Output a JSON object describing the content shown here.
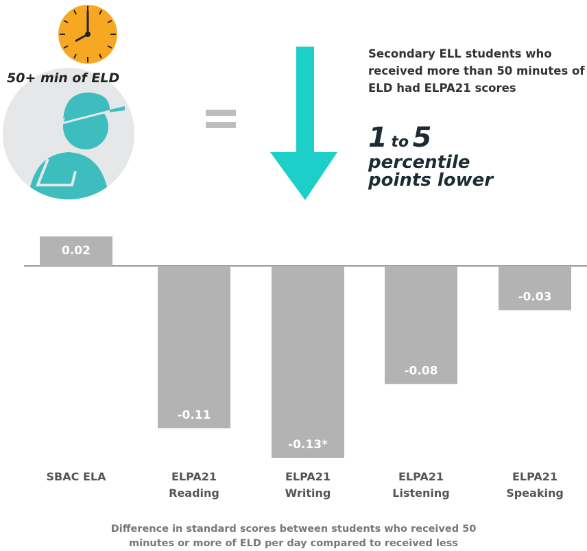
{
  "chart_data": {
    "type": "bar",
    "badge": "50+ min of ELD",
    "annotation": "Secondary ELL students who received more than 50 minutes of ELD had ELPA21 scores",
    "highlight": {
      "from": "1",
      "to_word": "to",
      "to": "5",
      "rest": "percentile points lower"
    },
    "categories": [
      "SBAC ELA",
      "ELPA21 Reading",
      "ELPA21 Writing",
      "ELPA21 Listening",
      "ELPA21 Speaking"
    ],
    "values": [
      0.02,
      -0.11,
      -0.13,
      -0.08,
      -0.03
    ],
    "value_labels": [
      "0.02",
      "-0.11",
      "-0.13*",
      "-0.08",
      "-0.03"
    ],
    "color": "#b3b3b3",
    "caption": "Difference in standard scores between students who received 50 minutes or more of ELD per day compared to received less"
  }
}
